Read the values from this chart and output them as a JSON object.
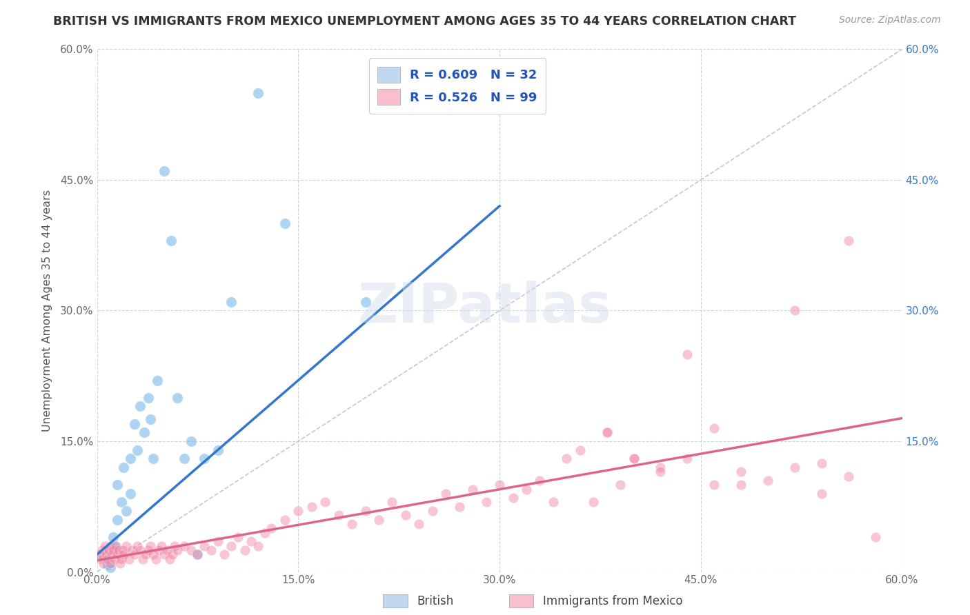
{
  "title": "BRITISH VS IMMIGRANTS FROM MEXICO UNEMPLOYMENT AMONG AGES 35 TO 44 YEARS CORRELATION CHART",
  "source": "Source: ZipAtlas.com",
  "ylabel": "Unemployment Among Ages 35 to 44 years",
  "xlim": [
    0.0,
    0.6
  ],
  "ylim": [
    0.0,
    0.6
  ],
  "xtick_labels": [
    "0.0%",
    "15.0%",
    "30.0%",
    "45.0%",
    "60.0%"
  ],
  "xtick_vals": [
    0.0,
    0.15,
    0.3,
    0.45,
    0.6
  ],
  "ytick_labels_left": [
    "0.0%",
    "15.0%",
    "30.0%",
    "45.0%",
    "60.0%"
  ],
  "ytick_vals": [
    0.0,
    0.15,
    0.3,
    0.45,
    0.6
  ],
  "right_ytick_labels": [
    "15.0%",
    "30.0%",
    "45.0%",
    "60.0%"
  ],
  "right_ytick_vals": [
    0.15,
    0.3,
    0.45,
    0.6
  ],
  "british_R": "0.609",
  "british_N": "32",
  "mexico_R": "0.526",
  "mexico_N": "99",
  "british_scatter_color": "#7ab8e8",
  "mexico_scatter_color": "#f080a0",
  "british_fill": "#c0d8f0",
  "mexico_fill": "#f8c0cc",
  "blue_line_color": "#3377cc",
  "pink_line_color": "#dd6688",
  "diagonal_color": "#c0c8d8",
  "background_color": "#ffffff",
  "grid_color": "#ccd4dc",
  "title_color": "#333333",
  "right_axis_color": "#3377cc",
  "legend_text_color": "#2255bb",
  "british_points_x": [
    0.005,
    0.008,
    0.01,
    0.012,
    0.013,
    0.015,
    0.015,
    0.018,
    0.02,
    0.022,
    0.025,
    0.025,
    0.028,
    0.03,
    0.032,
    0.035,
    0.038,
    0.04,
    0.042,
    0.045,
    0.05,
    0.055,
    0.06,
    0.065,
    0.07,
    0.075,
    0.08,
    0.09,
    0.1,
    0.12,
    0.14,
    0.2
  ],
  "british_points_y": [
    0.02,
    0.008,
    0.005,
    0.04,
    0.03,
    0.06,
    0.1,
    0.08,
    0.12,
    0.07,
    0.13,
    0.09,
    0.17,
    0.14,
    0.19,
    0.16,
    0.2,
    0.175,
    0.13,
    0.22,
    0.46,
    0.38,
    0.2,
    0.13,
    0.15,
    0.02,
    0.13,
    0.14,
    0.31,
    0.55,
    0.4,
    0.31
  ],
  "mexico_points_x": [
    0.002,
    0.003,
    0.004,
    0.005,
    0.006,
    0.007,
    0.008,
    0.009,
    0.01,
    0.01,
    0.011,
    0.012,
    0.013,
    0.014,
    0.015,
    0.016,
    0.017,
    0.018,
    0.019,
    0.02,
    0.022,
    0.024,
    0.026,
    0.028,
    0.03,
    0.032,
    0.034,
    0.036,
    0.038,
    0.04,
    0.042,
    0.044,
    0.046,
    0.048,
    0.05,
    0.052,
    0.054,
    0.056,
    0.058,
    0.06,
    0.065,
    0.07,
    0.075,
    0.08,
    0.085,
    0.09,
    0.095,
    0.1,
    0.105,
    0.11,
    0.115,
    0.12,
    0.125,
    0.13,
    0.14,
    0.15,
    0.16,
    0.17,
    0.18,
    0.19,
    0.2,
    0.21,
    0.22,
    0.23,
    0.24,
    0.25,
    0.26,
    0.27,
    0.28,
    0.29,
    0.3,
    0.31,
    0.32,
    0.33,
    0.34,
    0.35,
    0.36,
    0.37,
    0.38,
    0.39,
    0.4,
    0.42,
    0.44,
    0.46,
    0.48,
    0.5,
    0.52,
    0.54,
    0.56,
    0.58,
    0.44,
    0.46,
    0.48,
    0.52,
    0.54,
    0.56,
    0.38,
    0.4,
    0.42
  ],
  "mexico_points_y": [
    0.02,
    0.015,
    0.025,
    0.01,
    0.03,
    0.02,
    0.015,
    0.025,
    0.03,
    0.01,
    0.02,
    0.025,
    0.015,
    0.03,
    0.02,
    0.025,
    0.01,
    0.015,
    0.025,
    0.02,
    0.03,
    0.015,
    0.025,
    0.02,
    0.03,
    0.025,
    0.015,
    0.02,
    0.025,
    0.03,
    0.02,
    0.015,
    0.025,
    0.03,
    0.02,
    0.025,
    0.015,
    0.02,
    0.03,
    0.025,
    0.03,
    0.025,
    0.02,
    0.03,
    0.025,
    0.035,
    0.02,
    0.03,
    0.04,
    0.025,
    0.035,
    0.03,
    0.045,
    0.05,
    0.06,
    0.07,
    0.075,
    0.08,
    0.065,
    0.055,
    0.07,
    0.06,
    0.08,
    0.065,
    0.055,
    0.07,
    0.09,
    0.075,
    0.095,
    0.08,
    0.1,
    0.085,
    0.095,
    0.105,
    0.08,
    0.13,
    0.14,
    0.08,
    0.16,
    0.1,
    0.13,
    0.12,
    0.13,
    0.1,
    0.115,
    0.105,
    0.12,
    0.09,
    0.11,
    0.04,
    0.25,
    0.165,
    0.1,
    0.3,
    0.125,
    0.38,
    0.16,
    0.13,
    0.115
  ]
}
